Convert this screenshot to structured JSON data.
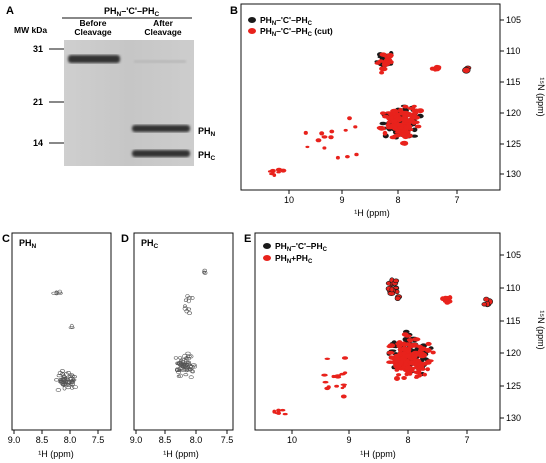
{
  "panels": {
    "A": {
      "letter": "A",
      "construct": "PH",
      "construct_sub_n": "N",
      "construct_mid": "–'C'–PH",
      "construct_sub_c": "C",
      "mw_label": "MW kDa",
      "lane1": [
        "Before",
        "Cleavage"
      ],
      "lane2": [
        "After",
        "Cleavage"
      ],
      "mw_markers": [
        "31",
        "21",
        "14"
      ],
      "band_label_1": "PH",
      "band_label_1_sub": "N",
      "band_label_2": "PH",
      "band_label_2_sub": "C"
    },
    "B": {
      "letter": "B",
      "legend": [
        {
          "text": "PH",
          "sub1": "N",
          "mid": "–'C'–PH",
          "sub2": "C",
          "tail": "",
          "color": "#1a1a1a"
        },
        {
          "text": "PH",
          "sub1": "N",
          "mid": "–'C'–PH",
          "sub2": "C",
          "tail": " (cut)",
          "color": "#e8221c"
        }
      ],
      "x_ticks": [
        "10",
        "9",
        "8",
        "7"
      ],
      "y_ticks": [
        "105",
        "110",
        "115",
        "120",
        "125",
        "130"
      ],
      "x_label": "¹H (ppm)",
      "y_label": "¹⁵N (ppm)"
    },
    "C": {
      "letter": "C",
      "title": "PH",
      "title_sub": "N",
      "x_ticks": [
        "9.0",
        "8.5",
        "8.0",
        "7.5"
      ],
      "x_label": "¹H (ppm)"
    },
    "D": {
      "letter": "D",
      "title": "PH",
      "title_sub": "C",
      "x_ticks": [
        "9.0",
        "8.5",
        "8.0",
        "7.5"
      ],
      "x_label": "¹H (ppm)"
    },
    "E": {
      "letter": "E",
      "legend": [
        {
          "text": "PH",
          "sub1": "N",
          "mid": "–'C'–PH",
          "sub2": "C",
          "tail": "",
          "color": "#1a1a1a"
        },
        {
          "text": "PH",
          "sub1": "N",
          "mid": "+PH",
          "sub2": "C",
          "tail": "",
          "color": "#e8221c"
        }
      ],
      "x_ticks": [
        "10",
        "9",
        "8",
        "7"
      ],
      "y_ticks": [
        "105",
        "110",
        "115",
        "120",
        "125",
        "130"
      ],
      "x_label": "¹H (ppm)",
      "y_label": "¹⁵N (ppm)"
    }
  },
  "colors": {
    "black_spectrum": "#1a1a1a",
    "red_spectrum": "#e8221c",
    "gel_background": "#c9c9c9",
    "gel_band": "#3a3a3a"
  }
}
